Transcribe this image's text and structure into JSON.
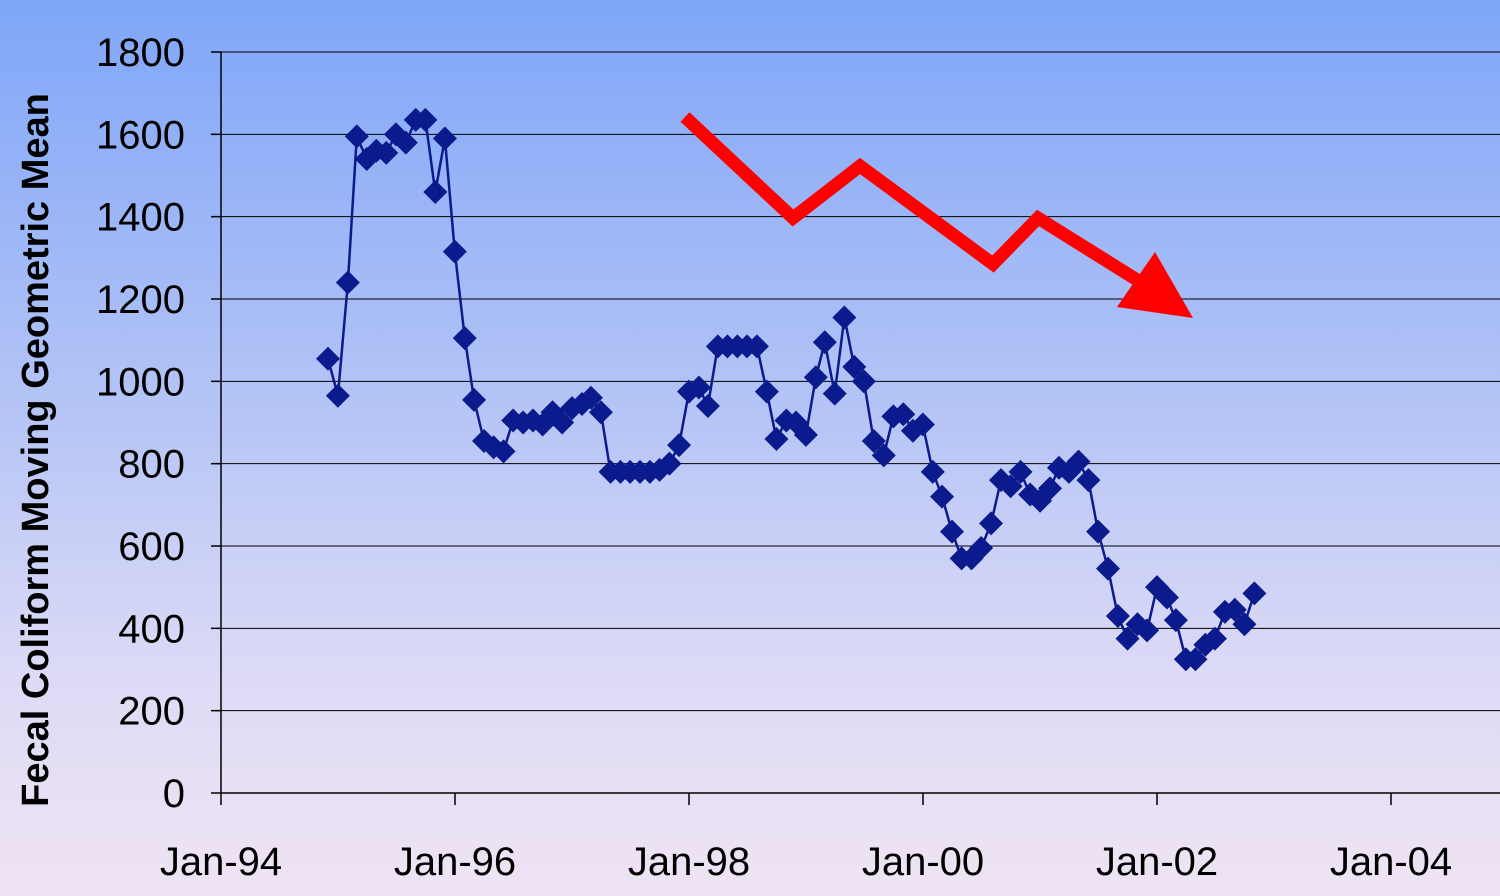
{
  "chart_data": {
    "type": "line",
    "title": "",
    "xlabel": "",
    "ylabel": "Fecal Coliform Moving Geometric Mean",
    "ylim": [
      0,
      1800
    ],
    "y_ticks": [
      0,
      200,
      400,
      600,
      800,
      1000,
      1200,
      1400,
      1600,
      1800
    ],
    "x_ticks": [
      "Jan-94",
      "Jan-96",
      "Jan-98",
      "Jan-00",
      "Jan-02",
      "Jan-04"
    ],
    "xlim": [
      "1994-01-01",
      "2006-01-01"
    ],
    "grid": true,
    "legend": "none",
    "series": [
      {
        "color": "#0b1a8c",
        "marker": "diamond",
        "points": [
          [
            "1994-12-01",
            1055
          ],
          [
            "1995-01-01",
            965
          ],
          [
            "1995-02-01",
            1240
          ],
          [
            "1995-03-01",
            1595
          ],
          [
            "1995-04-01",
            1540
          ],
          [
            "1995-05-01",
            1560
          ],
          [
            "1995-06-01",
            1555
          ],
          [
            "1995-07-01",
            1600
          ],
          [
            "1995-08-01",
            1580
          ],
          [
            "1995-09-01",
            1635
          ],
          [
            "1995-10-01",
            1635
          ],
          [
            "1995-11-01",
            1460
          ],
          [
            "1995-12-01",
            1590
          ],
          [
            "1996-01-01",
            1315
          ],
          [
            "1996-02-01",
            1105
          ],
          [
            "1996-03-01",
            955
          ],
          [
            "1996-04-01",
            855
          ],
          [
            "1996-05-01",
            840
          ],
          [
            "1996-06-01",
            830
          ],
          [
            "1996-07-01",
            905
          ],
          [
            "1996-08-01",
            900
          ],
          [
            "1996-09-01",
            905
          ],
          [
            "1996-10-01",
            895
          ],
          [
            "1996-11-01",
            925
          ],
          [
            "1996-12-01",
            900
          ],
          [
            "1997-01-01",
            935
          ],
          [
            "1997-02-01",
            945
          ],
          [
            "1997-03-01",
            960
          ],
          [
            "1997-04-01",
            925
          ],
          [
            "1997-05-01",
            780
          ],
          [
            "1997-06-01",
            780
          ],
          [
            "1997-07-01",
            780
          ],
          [
            "1997-08-01",
            780
          ],
          [
            "1997-09-01",
            780
          ],
          [
            "1997-10-01",
            785
          ],
          [
            "1997-11-01",
            800
          ],
          [
            "1997-12-01",
            845
          ],
          [
            "1998-01-01",
            975
          ],
          [
            "1998-02-01",
            985
          ],
          [
            "1998-03-01",
            940
          ],
          [
            "1998-04-01",
            1085
          ],
          [
            "1998-05-01",
            1085
          ],
          [
            "1998-06-01",
            1085
          ],
          [
            "1998-07-01",
            1085
          ],
          [
            "1998-08-01",
            1085
          ],
          [
            "1998-09-01",
            975
          ],
          [
            "1998-10-01",
            860
          ],
          [
            "1998-11-01",
            905
          ],
          [
            "1998-12-01",
            900
          ],
          [
            "1999-01-01",
            870
          ],
          [
            "1999-02-01",
            1010
          ],
          [
            "1999-03-01",
            1095
          ],
          [
            "1999-04-01",
            970
          ],
          [
            "1999-05-01",
            1155
          ],
          [
            "1999-06-01",
            1035
          ],
          [
            "1999-07-01",
            1000
          ],
          [
            "1999-08-01",
            855
          ],
          [
            "1999-09-01",
            820
          ],
          [
            "1999-10-01",
            915
          ],
          [
            "1999-11-01",
            920
          ],
          [
            "1999-12-01",
            880
          ],
          [
            "2000-01-01",
            895
          ],
          [
            "2000-02-01",
            780
          ],
          [
            "2000-03-01",
            720
          ],
          [
            "2000-04-01",
            635
          ],
          [
            "2000-05-01",
            570
          ],
          [
            "2000-06-01",
            570
          ],
          [
            "2000-07-01",
            595
          ],
          [
            "2000-08-01",
            655
          ],
          [
            "2000-09-01",
            760
          ],
          [
            "2000-10-01",
            745
          ],
          [
            "2000-11-01",
            780
          ],
          [
            "2000-12-01",
            725
          ],
          [
            "2001-01-01",
            710
          ],
          [
            "2001-02-01",
            740
          ],
          [
            "2001-03-01",
            790
          ],
          [
            "2001-04-01",
            780
          ],
          [
            "2001-05-01",
            805
          ],
          [
            "2001-06-01",
            760
          ],
          [
            "2001-07-01",
            635
          ],
          [
            "2001-08-01",
            545
          ],
          [
            "2001-09-01",
            430
          ],
          [
            "2001-10-01",
            375
          ],
          [
            "2001-11-01",
            410
          ],
          [
            "2001-12-01",
            395
          ],
          [
            "2002-01-01",
            500
          ],
          [
            "2002-02-01",
            475
          ],
          [
            "2002-03-01",
            420
          ],
          [
            "2002-04-01",
            325
          ],
          [
            "2002-05-01",
            325
          ],
          [
            "2002-06-01",
            360
          ],
          [
            "2002-07-01",
            375
          ],
          [
            "2002-08-01",
            440
          ],
          [
            "2002-09-01",
            445
          ],
          [
            "2002-10-01",
            410
          ],
          [
            "2002-11-01",
            485
          ]
        ]
      }
    ],
    "annotations": [
      {
        "type": "trend-arrow",
        "color": "#ff0000",
        "direction": "downward"
      }
    ]
  }
}
